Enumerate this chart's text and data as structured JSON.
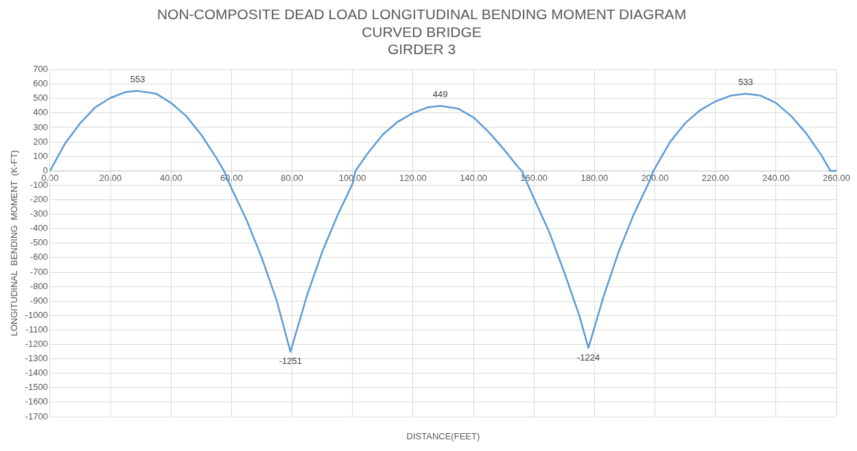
{
  "chart_data": {
    "type": "line",
    "title": "NON-COMPOSITE DEAD LOAD LONGITUDINAL BENDING MOMENT DIAGRAM\nCURVED BRIDGE\nGIRDER 3",
    "xlabel": "DISTANCE(FEET)",
    "ylabel": "LONGITUDINAL  BENDING  MOMENT  (K-FT)",
    "series": [
      {
        "color": "#5b9bd5",
        "x": [
          0,
          5,
          10,
          15,
          20,
          25,
          29,
          35,
          40,
          45,
          50,
          55,
          57.5,
          60,
          65,
          70,
          75,
          79.5,
          85,
          90,
          95,
          100,
          101,
          105,
          110,
          115,
          120,
          125,
          129,
          135,
          140,
          145,
          150,
          155,
          156,
          160,
          165,
          170,
          175,
          178,
          183,
          188,
          193,
          198,
          199.5,
          205,
          210,
          215,
          220,
          225,
          230,
          235,
          240,
          245,
          250,
          255,
          258,
          260
        ],
        "values": [
          0,
          190,
          330,
          440,
          505,
          545,
          553,
          535,
          470,
          380,
          250,
          90,
          0,
          -120,
          -340,
          -600,
          -900,
          -1251,
          -860,
          -560,
          -310,
          -90,
          0,
          120,
          250,
          340,
          400,
          440,
          449,
          430,
          370,
          270,
          150,
          20,
          0,
          -190,
          -420,
          -700,
          -1000,
          -1224,
          -870,
          -560,
          -300,
          -80,
          0,
          200,
          330,
          420,
          480,
          520,
          533,
          520,
          470,
          380,
          260,
          110,
          0,
          0
        ]
      }
    ],
    "annotations": [
      {
        "text": "553",
        "x": 29,
        "y": 553
      },
      {
        "text": "449",
        "x": 129,
        "y": 449
      },
      {
        "text": "533",
        "x": 230,
        "y": 533
      },
      {
        "text": "-1251",
        "x": 79.5,
        "y": -1251
      },
      {
        "text": "-1224",
        "x": 178,
        "y": -1224
      }
    ],
    "xlim": [
      0,
      260
    ],
    "xticks": [
      {
        "value": 0,
        "label": "0.00"
      },
      {
        "value": 20,
        "label": "20.00"
      },
      {
        "value": 40,
        "label": "40.00"
      },
      {
        "value": 60,
        "label": "60.00"
      },
      {
        "value": 80,
        "label": "80.00"
      },
      {
        "value": 100,
        "label": "100.00"
      },
      {
        "value": 120,
        "label": "120.00"
      },
      {
        "value": 140,
        "label": "140.00"
      },
      {
        "value": 160,
        "label": "160.00"
      },
      {
        "value": 180,
        "label": "180.00"
      },
      {
        "value": 200,
        "label": "200.00"
      },
      {
        "value": 220,
        "label": "220.00"
      },
      {
        "value": 240,
        "label": "240.00"
      },
      {
        "value": 260,
        "label": "260.00"
      }
    ],
    "ylim": [
      -1700,
      700
    ],
    "yticks": [
      -1700,
      -1600,
      -1500,
      -1400,
      -1300,
      -1200,
      -1100,
      -1000,
      -900,
      -800,
      -700,
      -600,
      -500,
      -400,
      -300,
      -200,
      -100,
      0,
      100,
      200,
      300,
      400,
      500,
      600,
      700
    ],
    "grid": true,
    "legend": false,
    "marker": "none",
    "line_style": "solid"
  }
}
